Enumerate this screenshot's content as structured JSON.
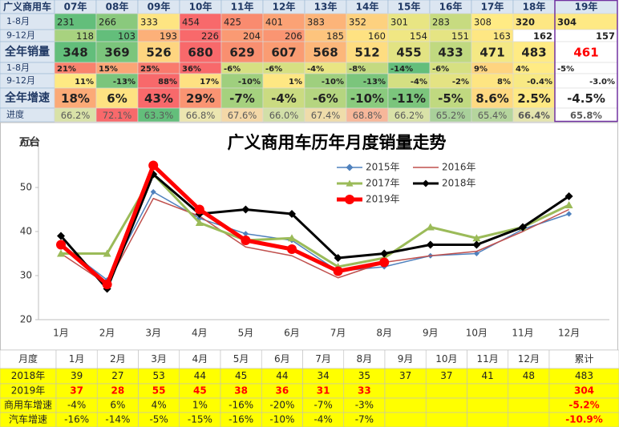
{
  "top_table": {
    "header": [
      "广义商用车",
      "07年",
      "08年",
      "09年",
      "10年",
      "11年",
      "12年",
      "13年",
      "14年",
      "15年",
      "16年",
      "17年",
      "18年",
      "19年"
    ],
    "rows": [
      {
        "label": "1-8月",
        "cells": [
          "231",
          "266",
          "333",
          "454",
          "425",
          "401",
          "383",
          "352",
          "301",
          "283",
          "308",
          "320",
          "304"
        ],
        "colors": [
          "#63be7b",
          "#8ac97d",
          "#fee582",
          "#f8696b",
          "#f98b6f",
          "#fba275",
          "#fcb479",
          "#fdd17f",
          "#e8e583",
          "#c7db80",
          "#ffeb84",
          "#fde783",
          "#fee984"
        ]
      },
      {
        "label": "9-12月",
        "cells": [
          "118",
          "103",
          "193",
          "226",
          "204",
          "206",
          "185",
          "160",
          "154",
          "151",
          "163",
          "162",
          "157"
        ],
        "colors": [
          "#a8d27f",
          "#63be7b",
          "#fcb079",
          "#f8696b",
          "#fa9a73",
          "#fa9572",
          "#fdc47d",
          "#fee282",
          "#f0e783",
          "#e5e483",
          "#fee783",
          "#ffffff",
          "#ffffff"
        ]
      },
      {
        "label": "全年销量",
        "cells": [
          "348",
          "369",
          "526",
          "680",
          "629",
          "607",
          "568",
          "512",
          "455",
          "433",
          "471",
          "483",
          "461"
        ],
        "colors": [
          "#63be7b",
          "#7bc57c",
          "#fed580",
          "#f8696b",
          "#f98f70",
          "#fa9c73",
          "#fcb77a",
          "#fedd81",
          "#e2e383",
          "#c0d980",
          "#f4e884",
          "#ffeb84",
          "#ffffff"
        ]
      },
      {
        "label": "1-8月",
        "cells": [
          "21%",
          "15%",
          "25%",
          "36%",
          "-6%",
          "-6%",
          "-4%",
          "-8%",
          "-14%",
          "-6%",
          "9%",
          "4%",
          "-5%"
        ],
        "colors": [
          "#f9826d",
          "#fba576",
          "#f97a6d",
          "#f8696b",
          "#d6e082",
          "#d6e082",
          "#e9e583",
          "#c4da81",
          "#63be7b",
          "#d6e082",
          "#fed480",
          "#ffeb84",
          "#ffffff"
        ]
      },
      {
        "label": "9-12月",
        "cells": [
          "11%",
          "-13%",
          "88%",
          "17%",
          "-10%",
          "1%",
          "-10%",
          "-13%",
          "-4%",
          "-2%",
          "8%",
          "-0.4%",
          "-3.0%"
        ],
        "colors": [
          "#fee983",
          "#7bc57c",
          "#f8696b",
          "#fee182",
          "#9fcf7e",
          "#fee783",
          "#9fcf7e",
          "#7bc57c",
          "#d4df82",
          "#e4e383",
          "#fee582",
          "#f8e984",
          "#ffffff"
        ]
      },
      {
        "label": "全年增速",
        "cells": [
          "18%",
          "6%",
          "43%",
          "29%",
          "-7%",
          "-4%",
          "-6%",
          "-10%",
          "-11%",
          "-5%",
          "8.6%",
          "2.5%",
          "-4.5%"
        ],
        "colors": [
          "#fbaa77",
          "#fee282",
          "#f8696b",
          "#fa9472",
          "#a5d17e",
          "#cadb81",
          "#b5d580",
          "#8acb7e",
          "#7bc57c",
          "#c0d980",
          "#fed981",
          "#fee983",
          "#ffffff"
        ]
      },
      {
        "label": "进度",
        "cells": [
          "66.2%",
          "72.1%",
          "63.3%",
          "66.8%",
          "67.6%",
          "66.0%",
          "67.4%",
          "68.8%",
          "66.2%",
          "65.2%",
          "65.4%",
          "66.4%",
          "65.8%"
        ],
        "colors": [
          "#d9e2a8",
          "#f8696b",
          "#63be7b",
          "#ece6b0",
          "#f4d8a8",
          "#d2dfa8",
          "#efdcaa",
          "#f7b79a",
          "#d9e2a8",
          "#a9d19a",
          "#b5d59d",
          "#e4e4ae",
          "#ffffff"
        ]
      }
    ]
  },
  "chart_data": {
    "type": "line",
    "title": "广义商用车历年月度销量走势",
    "y_label": "万台",
    "categories": [
      "1月",
      "2月",
      "3月",
      "4月",
      "5月",
      "6月",
      "7月",
      "8月",
      "9月",
      "10月",
      "11月",
      "12月"
    ],
    "ylim": [
      20,
      60
    ],
    "yticks": [
      20,
      30,
      40,
      50,
      60
    ],
    "series": [
      {
        "name": "2015年",
        "color": "#4f81bd",
        "marker": "diamond",
        "width": 1.5,
        "values": [
          37,
          29,
          49,
          43,
          39.5,
          38,
          31,
          32,
          34.5,
          35,
          40.5,
          44
        ]
      },
      {
        "name": "2016年",
        "color": "#c0504d",
        "marker": "none",
        "width": 1.5,
        "values": [
          35,
          28,
          47.5,
          43.5,
          36.5,
          34.5,
          29.5,
          33,
          34.5,
          35.5,
          40,
          45
        ]
      },
      {
        "name": "2017年",
        "color": "#9bbb59",
        "marker": "triangle",
        "width": 3,
        "values": [
          35,
          35,
          53,
          42,
          38,
          38.5,
          32,
          34,
          41,
          38.5,
          41,
          46
        ]
      },
      {
        "name": "2018年",
        "color": "#000000",
        "marker": "diamond",
        "width": 3,
        "values": [
          39,
          27,
          53,
          44,
          45,
          44,
          34,
          35,
          37,
          37,
          41,
          48
        ]
      },
      {
        "name": "2019年",
        "color": "#ff0000",
        "marker": "circle",
        "width": 5,
        "values": [
          37,
          28,
          55,
          45,
          38,
          36,
          31,
          33,
          null,
          null,
          null,
          null
        ]
      }
    ]
  },
  "bottom_table": {
    "header": [
      "月度",
      "1月",
      "2月",
      "3月",
      "4月",
      "5月",
      "6月",
      "7月",
      "8月",
      "9月",
      "10月",
      "11月",
      "12月",
      "累计"
    ],
    "rows": [
      {
        "label": "2018年",
        "cells": [
          "39",
          "27",
          "53",
          "44",
          "45",
          "44",
          "34",
          "35",
          "37",
          "37",
          "41",
          "48",
          "483"
        ]
      },
      {
        "label": "2019年",
        "cells": [
          "37",
          "28",
          "55",
          "45",
          "38",
          "36",
          "31",
          "33",
          null,
          null,
          null,
          null,
          "304"
        ]
      },
      {
        "label": "商用车增速",
        "cells": [
          "-4%",
          "6%",
          "4%",
          "1%",
          "-16%",
          "-20%",
          "-7%",
          "-3%",
          null,
          null,
          null,
          null,
          "-5.2%"
        ]
      },
      {
        "label": "汽车增速",
        "cells": [
          "-16%",
          "-14%",
          "-5%",
          "-15%",
          "-16%",
          "-10%",
          "-4%",
          "-7%",
          null,
          null,
          null,
          null,
          "-10.9%"
        ]
      }
    ]
  }
}
